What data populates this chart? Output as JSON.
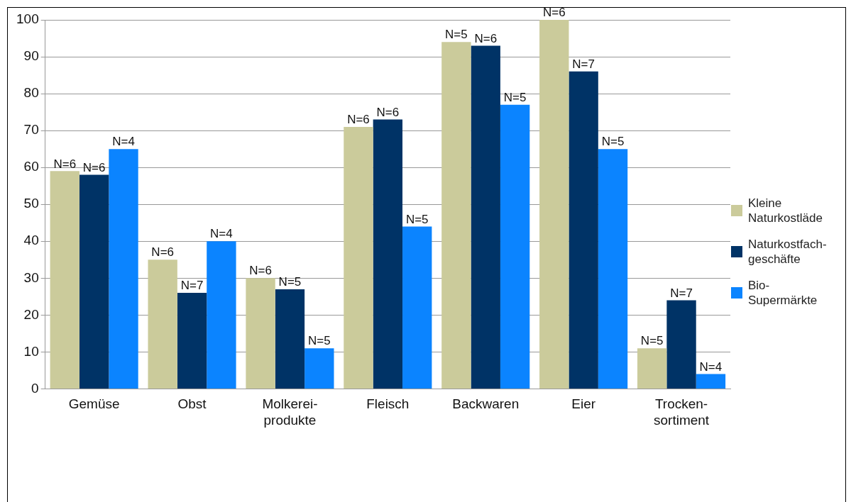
{
  "chart_data": {
    "type": "bar",
    "categories": [
      "Gemüse",
      "Obst",
      "Molkerei-\nprodukte",
      "Fleisch",
      "Backwaren",
      "Eier",
      "Trocken-\nsortiment"
    ],
    "series": [
      {
        "name": "Kleine\nNaturkostläde",
        "color": "#cbcb9b",
        "values": [
          59,
          35,
          30,
          71,
          94,
          100,
          11
        ]
      },
      {
        "name": "Naturkostfach-\ngeschäfte",
        "color": "#003366",
        "values": [
          58,
          26,
          27,
          73,
          93,
          86,
          24
        ]
      },
      {
        "name": "Bio-\nSupermärkte",
        "color": "#0b84ff",
        "values": [
          65,
          40,
          11,
          44,
          77,
          65,
          4
        ]
      }
    ],
    "annotations": [
      "N=6",
      "N=6",
      "N=4",
      "N=6",
      "N=7",
      "N=4",
      "N=6",
      "N=5",
      "N=5",
      "N=6",
      "N=6",
      "N=5",
      "N=5",
      "N=6",
      "N=5",
      "N=6",
      "N=7",
      "N=5",
      "N=5",
      "N=7",
      "N=4"
    ],
    "ylim": [
      0,
      100
    ],
    "yticks": [
      0,
      10,
      20,
      30,
      40,
      50,
      60,
      70,
      80,
      90,
      100
    ],
    "grid": "y",
    "legend": "right"
  }
}
